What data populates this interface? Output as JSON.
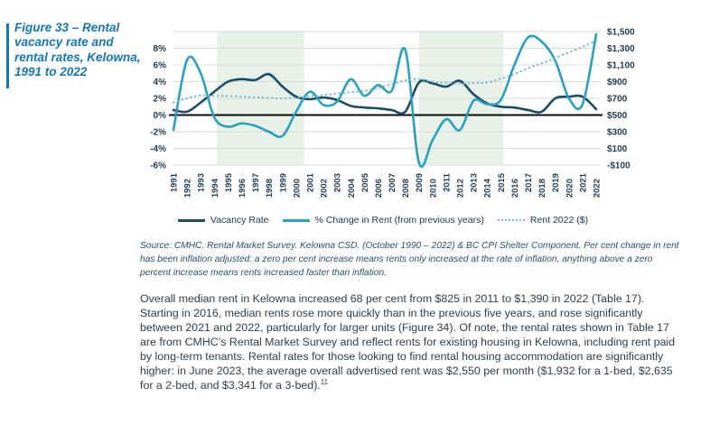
{
  "figure": {
    "label": "Figure 33 – Rental vacancy rate and rental rates, Kelowna, 1991 to 2022",
    "accent_color": "#1377b7"
  },
  "chart_data": {
    "type": "line",
    "title": "Figure 33 – Rental vacancy rate and rental rates, Kelowna, 1991 to 2022",
    "x": [
      1991,
      1992,
      1993,
      1994,
      1995,
      1996,
      1997,
      1998,
      1999,
      2000,
      2001,
      2002,
      2003,
      2004,
      2005,
      2006,
      2007,
      2008,
      2009,
      2010,
      2011,
      2012,
      2013,
      2014,
      2015,
      2016,
      2017,
      2018,
      2019,
      2020,
      2021,
      2022
    ],
    "series": [
      {
        "name": "Vacancy Rate",
        "axis": "left",
        "line_style": "solid",
        "color": "#1c4b69",
        "values": [
          0.6,
          0.4,
          1.5,
          2.8,
          4.0,
          4.3,
          4.2,
          4.9,
          3.4,
          2.2,
          1.9,
          2.1,
          1.8,
          1.1,
          0.9,
          0.8,
          0.6,
          0.4,
          3.9,
          3.8,
          3.4,
          4.1,
          2.5,
          1.4,
          1.0,
          0.9,
          0.6,
          0.4,
          2.0,
          2.2,
          2.2,
          0.7
        ]
      },
      {
        "name": "% Change in Rent (from previous years)",
        "axis": "left",
        "line_style": "solid",
        "color": "#2aa0bf",
        "values": [
          -1.8,
          6.6,
          5.0,
          -0.3,
          -1.4,
          -1.0,
          -1.3,
          -2.0,
          -2.5,
          0.4,
          2.8,
          1.2,
          1.6,
          4.3,
          2.3,
          3.6,
          2.9,
          7.8,
          -5.7,
          -3.0,
          -0.5,
          -1.8,
          1.7,
          1.3,
          1.8,
          6.0,
          9.3,
          8.8,
          6.5,
          2.0,
          1.3,
          9.7
        ]
      },
      {
        "name": "Rent 2022 ($)",
        "axis": "right",
        "line_style": "dotted",
        "color": "#74bcd6",
        "values": [
          650,
          700,
          735,
          730,
          728,
          720,
          712,
          705,
          700,
          710,
          725,
          740,
          755,
          775,
          790,
          825,
          870,
          915,
          930,
          898,
          885,
          878,
          882,
          890,
          935,
          990,
          1060,
          1120,
          1185,
          1250,
          1315,
          1390
        ]
      }
    ],
    "left_axis": {
      "max": 10,
      "min": -6,
      "tick_step": 2,
      "tick_labels": [
        "8%",
        "6%",
        "4%",
        "2%",
        "0%",
        "-2%",
        "-4%",
        "-6%"
      ]
    },
    "right_axis": {
      "max": 1500,
      "min": -100,
      "tick_step": 200,
      "tick_labels": [
        "$1,500",
        "$1,300",
        "$1,100",
        "$900",
        "$700",
        "$500",
        "$300",
        "$100",
        "-$100"
      ]
    },
    "highlight_bands": [
      {
        "from": 1994.2,
        "to": 2000.6,
        "color": "#e8f1e8"
      },
      {
        "from": 2009,
        "to": 2015.2,
        "color": "#e8f1e8"
      }
    ],
    "gridline_color": "#d9d9d9",
    "zero_line_color": "#0b0b0b",
    "text_color": "#1f3b50",
    "grid": true,
    "legend_position": "bottom"
  },
  "source_note": {
    "text": "Source: CMHC. Rental Market Survey. Kelowna CSD. (October 1990 – 2022) & BC CPI Shelter Component. Per cent change in rent has been inflation adjusted: a zero per cent increase means rents only increased at the rate of inflation, anything above a zero percent increase means rents increased faster than inflation."
  },
  "body": {
    "text": "Overall median rent in Kelowna increased 68 per cent from $825 in 2011 to $1,390 in 2022 (Table 17). Starting in 2016, median rents rose more quickly than in the previous five years, and rose significantly between 2021 and 2022, particularly for larger units (Figure 34). Of note, the rental rates shown in Table 17 are from CMHC’s Rental Market Survey and reflect rents for existing housing in Kelowna, including rent paid by long-term tenants. Rental rates for those looking to find rental housing accommodation are significantly higher: in June 2023, the average overall advertised rent was $2,550 per month ($1,932 for a 1-bed, $2,635 for a 2-bed, and $3,341 for a 3-bed).",
    "footnote_marker": "11"
  }
}
